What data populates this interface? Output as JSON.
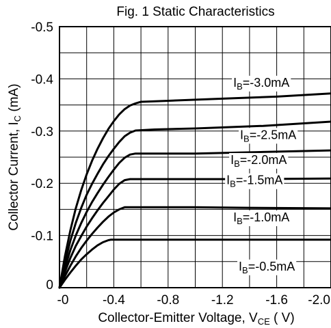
{
  "chart_data": {
    "type": "line",
    "title": "Fig. 1 Static Characteristics",
    "xlabel": {
      "main": "Collector-Emitter Voltage, V",
      "sub": "CE",
      "suffix": " ( V)"
    },
    "ylabel": {
      "main": "Collector Current, I",
      "sub": "C",
      "suffix": " (mA)"
    },
    "xlim": [
      0,
      2.0
    ],
    "ylim": [
      0,
      0.5
    ],
    "x_sign": "negative",
    "y_sign": "negative",
    "x_ticks": [
      {
        "value": 0,
        "label": "-0"
      },
      {
        "value": 0.4,
        "label": "-0.4"
      },
      {
        "value": 0.8,
        "label": "-0.8"
      },
      {
        "value": 1.2,
        "label": "-1.2"
      },
      {
        "value": 1.6,
        "label": "-1.6"
      },
      {
        "value": 2.0,
        "label": "-2.0"
      }
    ],
    "y_ticks": [
      {
        "value": 0,
        "label": "0"
      },
      {
        "value": 0.1,
        "label": "-0.1"
      },
      {
        "value": 0.2,
        "label": "-0.2"
      },
      {
        "value": 0.3,
        "label": "-0.3"
      },
      {
        "value": 0.4,
        "label": "-0.4"
      },
      {
        "value": 0.5,
        "label": "-0.5"
      }
    ],
    "grid": true,
    "grid_x_step": 0.2,
    "grid_y_step": 0.05,
    "series": [
      {
        "label": {
          "pre": "I",
          "sub": "B",
          "post": "=-0.5mA"
        },
        "label_at": [
          1.32,
          0.033
        ],
        "x": [
          0,
          0.04,
          0.08,
          0.12,
          0.16,
          0.2,
          0.24,
          0.28,
          0.32,
          0.36,
          0.38,
          0.42,
          0.6,
          1.0,
          1.4,
          2.0
        ],
        "y": [
          0,
          0.015,
          0.029,
          0.042,
          0.054,
          0.064,
          0.073,
          0.081,
          0.087,
          0.091,
          0.092,
          0.092,
          0.092,
          0.092,
          0.092,
          0.092
        ]
      },
      {
        "label": {
          "pre": "I",
          "sub": "B",
          "post": "=-1.0mA"
        },
        "label_at": [
          1.28,
          0.127
        ],
        "x": [
          0,
          0.04,
          0.08,
          0.12,
          0.16,
          0.2,
          0.24,
          0.28,
          0.32,
          0.36,
          0.4,
          0.44,
          0.48,
          0.6,
          1.0,
          1.4,
          2.0
        ],
        "y": [
          0,
          0.022,
          0.042,
          0.06,
          0.076,
          0.09,
          0.103,
          0.115,
          0.126,
          0.136,
          0.144,
          0.15,
          0.154,
          0.154,
          0.154,
          0.153,
          0.152
        ]
      },
      {
        "label": {
          "pre": "I",
          "sub": "B",
          "post": "=-1.5mA"
        },
        "label_at": [
          1.23,
          0.198
        ],
        "x": [
          0,
          0.04,
          0.08,
          0.12,
          0.16,
          0.2,
          0.24,
          0.28,
          0.32,
          0.36,
          0.4,
          0.44,
          0.48,
          0.52,
          0.6,
          1.0,
          1.4,
          2.0
        ],
        "y": [
          0,
          0.03,
          0.057,
          0.08,
          0.099,
          0.117,
          0.133,
          0.148,
          0.162,
          0.175,
          0.188,
          0.199,
          0.206,
          0.208,
          0.208,
          0.208,
          0.208,
          0.209
        ]
      },
      {
        "label": {
          "pre": "I",
          "sub": "B",
          "post": "=-2.0mA"
        },
        "label_at": [
          1.26,
          0.237
        ],
        "x": [
          0,
          0.04,
          0.08,
          0.12,
          0.16,
          0.2,
          0.24,
          0.28,
          0.32,
          0.36,
          0.4,
          0.44,
          0.48,
          0.52,
          0.56,
          0.7,
          1.0,
          1.5,
          2.0
        ],
        "y": [
          0,
          0.038,
          0.072,
          0.1,
          0.124,
          0.145,
          0.164,
          0.181,
          0.197,
          0.212,
          0.226,
          0.239,
          0.249,
          0.255,
          0.257,
          0.257,
          0.257,
          0.26,
          0.263
        ]
      },
      {
        "label": {
          "pre": "I",
          "sub": "B",
          "post": "=-2.5mA"
        },
        "label_at": [
          1.33,
          0.285
        ],
        "x": [
          0,
          0.04,
          0.08,
          0.12,
          0.16,
          0.2,
          0.24,
          0.28,
          0.32,
          0.36,
          0.4,
          0.44,
          0.48,
          0.52,
          0.56,
          0.7,
          1.0,
          1.5,
          2.0
        ],
        "y": [
          0,
          0.048,
          0.09,
          0.124,
          0.153,
          0.178,
          0.199,
          0.218,
          0.236,
          0.252,
          0.266,
          0.279,
          0.29,
          0.297,
          0.301,
          0.303,
          0.305,
          0.31,
          0.318
        ]
      },
      {
        "label": {
          "pre": "I",
          "sub": "B",
          "post": "=-3.0mA"
        },
        "label_at": [
          1.28,
          0.385
        ],
        "x": [
          0,
          0.04,
          0.08,
          0.12,
          0.16,
          0.2,
          0.24,
          0.28,
          0.32,
          0.36,
          0.4,
          0.44,
          0.48,
          0.52,
          0.56,
          0.6,
          0.8,
          1.2,
          1.6,
          2.0
        ],
        "y": [
          0,
          0.06,
          0.11,
          0.152,
          0.187,
          0.217,
          0.243,
          0.266,
          0.286,
          0.304,
          0.319,
          0.332,
          0.342,
          0.349,
          0.353,
          0.356,
          0.358,
          0.362,
          0.366,
          0.372
        ]
      }
    ]
  }
}
